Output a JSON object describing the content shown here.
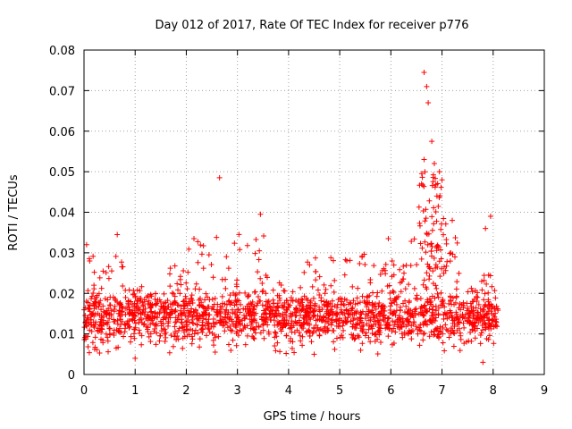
{
  "chart_data": {
    "type": "scatter",
    "title": "Day 012 of 2017, Rate Of TEC Index for receiver p776",
    "xlabel": "GPS time / hours",
    "ylabel": "ROTI / TECUs",
    "xlim": [
      0,
      9
    ],
    "ylim": [
      0,
      0.08
    ],
    "xticks": [
      "0",
      "1",
      "2",
      "3",
      "4",
      "5",
      "6",
      "7",
      "8",
      "9"
    ],
    "yticks": [
      "0",
      "0.01",
      "0.02",
      "0.03",
      "0.04",
      "0.05",
      "0.06",
      "0.07",
      "0.08"
    ],
    "grid": true,
    "marker": "+",
    "colors": {
      "marker": "#ff0000",
      "axis": "#000000",
      "grid": "#a0a0a0"
    },
    "x_range_of_data": [
      0,
      8.1
    ],
    "typical_band": [
      0.005,
      0.022
    ],
    "notable_points": [
      {
        "x": 2.65,
        "y": 0.0485
      },
      {
        "x": 3.45,
        "y": 0.0395
      },
      {
        "x": 6.65,
        "y": 0.0745
      },
      {
        "x": 6.7,
        "y": 0.071
      },
      {
        "x": 6.73,
        "y": 0.067
      },
      {
        "x": 6.8,
        "y": 0.0575
      },
      {
        "x": 6.65,
        "y": 0.053
      },
      {
        "x": 6.85,
        "y": 0.052
      },
      {
        "x": 6.95,
        "y": 0.05
      },
      {
        "x": 6.6,
        "y": 0.047
      },
      {
        "x": 7.0,
        "y": 0.048
      },
      {
        "x": 6.9,
        "y": 0.044
      },
      {
        "x": 7.2,
        "y": 0.038
      },
      {
        "x": 7.95,
        "y": 0.039
      },
      {
        "x": 7.85,
        "y": 0.036
      },
      {
        "x": 5.95,
        "y": 0.0335
      },
      {
        "x": 2.15,
        "y": 0.0335
      },
      {
        "x": 0.65,
        "y": 0.0345
      },
      {
        "x": 0.05,
        "y": 0.032
      },
      {
        "x": 1.0,
        "y": 0.004
      },
      {
        "x": 7.8,
        "y": 0.003
      },
      {
        "x": 4.5,
        "y": 0.005
      }
    ]
  }
}
